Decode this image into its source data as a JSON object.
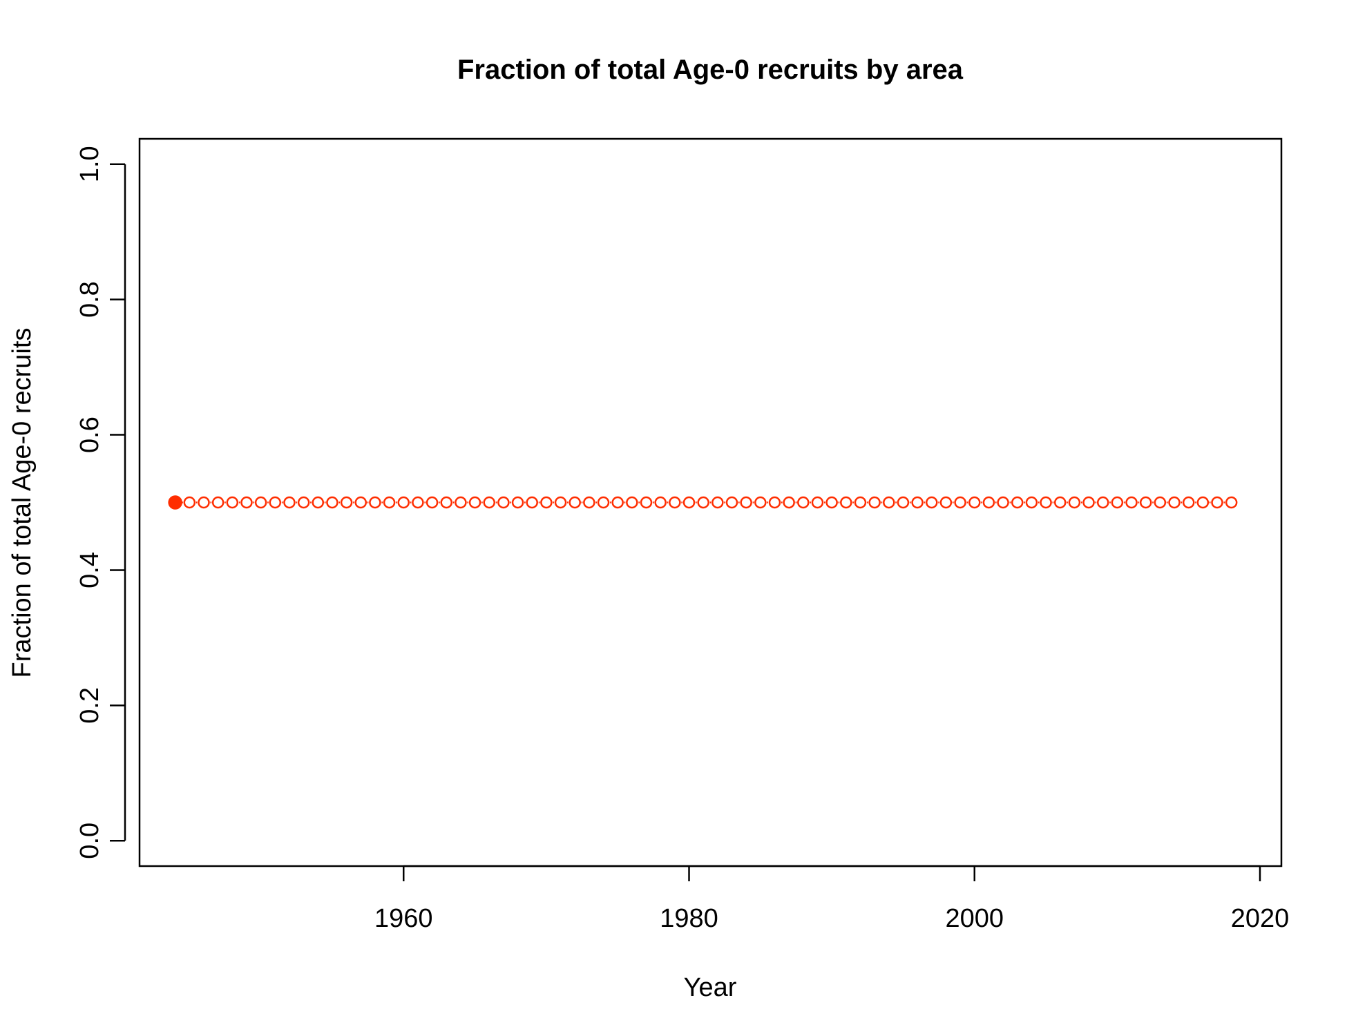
{
  "chart_data": {
    "type": "scatter",
    "title": "Fraction of total Age-0 recruits by area",
    "xlabel": "Year",
    "ylabel": "Fraction of total Age-0 recruits",
    "xlim": [
      1941.5,
      2021.5
    ],
    "ylim": [
      -0.0375,
      1.0375
    ],
    "x_ticks": [
      1960,
      1980,
      2000,
      2020
    ],
    "x_tick_labels": [
      "1960",
      "1980",
      "2000",
      "2020"
    ],
    "y_ticks": [
      0.0,
      0.2,
      0.4,
      0.6,
      0.8,
      1.0
    ],
    "y_tick_labels": [
      "0.0",
      "0.2",
      "0.4",
      "0.6",
      "0.8",
      "1.0"
    ],
    "grid": false,
    "legend": "none",
    "series": [
      {
        "color": "#ff2d00",
        "marker": "open-circle-with-line",
        "first_point_filled": true,
        "x": [
          1944,
          1945,
          1946,
          1947,
          1948,
          1949,
          1950,
          1951,
          1952,
          1953,
          1954,
          1955,
          1956,
          1957,
          1958,
          1959,
          1960,
          1961,
          1962,
          1963,
          1964,
          1965,
          1966,
          1967,
          1968,
          1969,
          1970,
          1971,
          1972,
          1973,
          1974,
          1975,
          1976,
          1977,
          1978,
          1979,
          1980,
          1981,
          1982,
          1983,
          1984,
          1985,
          1986,
          1987,
          1988,
          1989,
          1990,
          1991,
          1992,
          1993,
          1994,
          1995,
          1996,
          1997,
          1998,
          1999,
          2000,
          2001,
          2002,
          2003,
          2004,
          2005,
          2006,
          2007,
          2008,
          2009,
          2010,
          2011,
          2012,
          2013,
          2014,
          2015,
          2016,
          2017,
          2018
        ],
        "y": [
          0.5,
          0.5,
          0.5,
          0.5,
          0.5,
          0.5,
          0.5,
          0.5,
          0.5,
          0.5,
          0.5,
          0.5,
          0.5,
          0.5,
          0.5,
          0.5,
          0.5,
          0.5,
          0.5,
          0.5,
          0.5,
          0.5,
          0.5,
          0.5,
          0.5,
          0.5,
          0.5,
          0.5,
          0.5,
          0.5,
          0.5,
          0.5,
          0.5,
          0.5,
          0.5,
          0.5,
          0.5,
          0.5,
          0.5,
          0.5,
          0.5,
          0.5,
          0.5,
          0.5,
          0.5,
          0.5,
          0.5,
          0.5,
          0.5,
          0.5,
          0.5,
          0.5,
          0.5,
          0.5,
          0.5,
          0.5,
          0.5,
          0.5,
          0.5,
          0.5,
          0.5,
          0.5,
          0.5,
          0.5,
          0.5,
          0.5,
          0.5,
          0.5,
          0.5,
          0.5,
          0.5,
          0.5,
          0.5,
          0.5,
          0.5
        ]
      }
    ]
  }
}
